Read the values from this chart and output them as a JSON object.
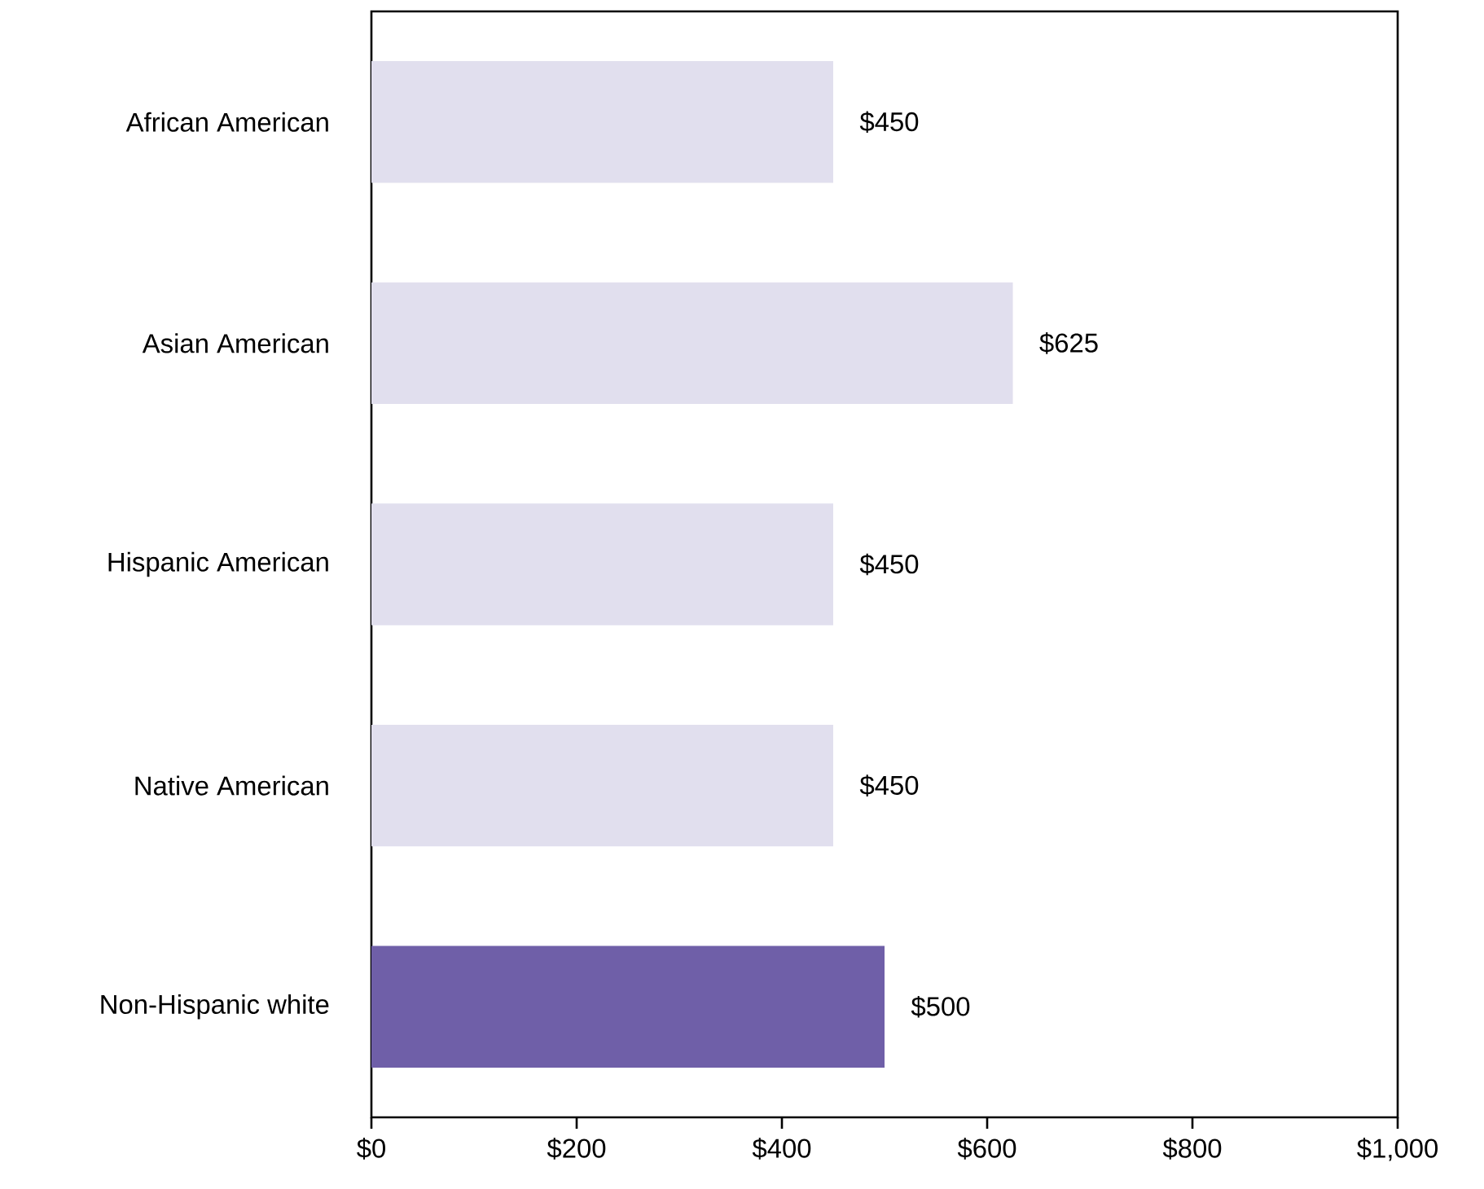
{
  "chart_data": {
    "type": "bar",
    "orientation": "horizontal",
    "categories": [
      "African American",
      "Asian American",
      "Hispanic American",
      "Native American",
      "Non-Hispanic white"
    ],
    "values": [
      450,
      625,
      450,
      450,
      500
    ],
    "colors": [
      "#e1dfee",
      "#e1dfee",
      "#e1dfee",
      "#e1dfee",
      "#6f5fa8"
    ],
    "value_labels": [
      "$450",
      "$625",
      "$450",
      "$450",
      "$500"
    ],
    "xlim": [
      0,
      1000
    ],
    "xticks": [
      {
        "value": 0,
        "label": "$0"
      },
      {
        "value": 200,
        "label": "$200"
      },
      {
        "value": 400,
        "label": "$400"
      },
      {
        "value": 600,
        "label": "$600"
      },
      {
        "value": 800,
        "label": "$800"
      },
      {
        "value": 1000,
        "label": "$1,000"
      }
    ]
  }
}
